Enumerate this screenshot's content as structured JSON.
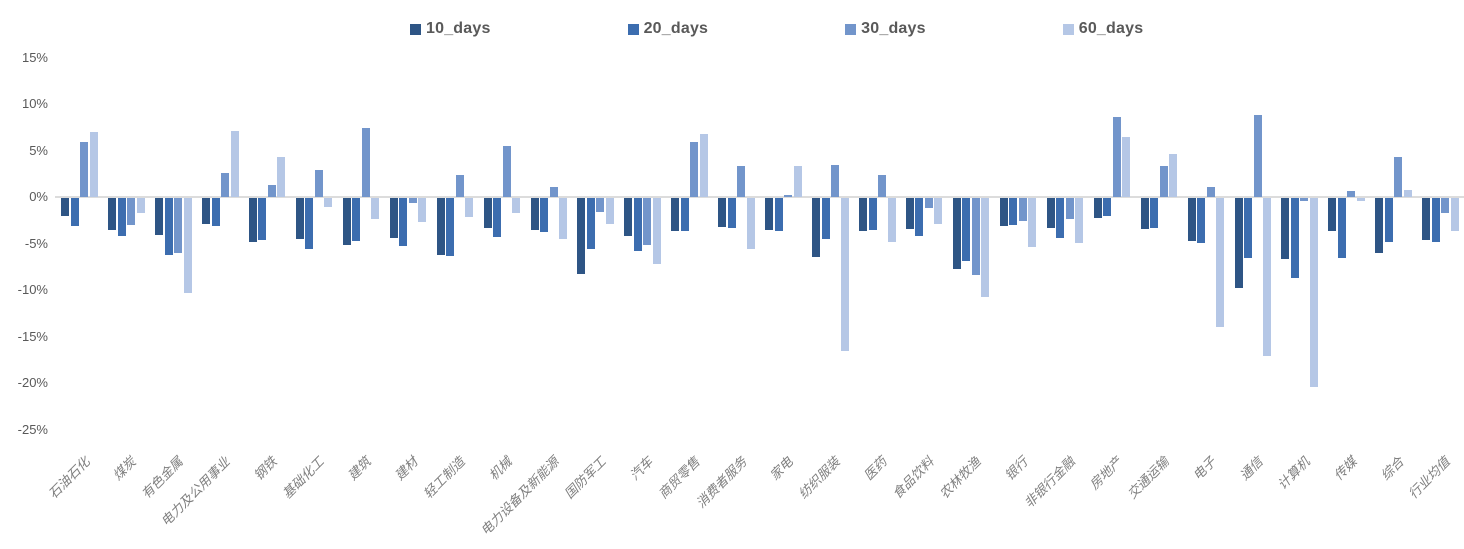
{
  "legend": {
    "items": [
      {
        "label": "10_days",
        "color": "#2E5585"
      },
      {
        "label": "20_days",
        "color": "#3C6DAF"
      },
      {
        "label": "30_days",
        "color": "#7295CB"
      },
      {
        "label": "60_days",
        "color": "#B5C7E6"
      }
    ]
  },
  "y_axis": {
    "tick_labels": [
      "15%",
      "10%",
      "5%",
      "0%",
      "-5%",
      "-10%",
      "-15%",
      "-20%",
      "-25%"
    ],
    "tick_values": [
      15,
      10,
      5,
      0,
      -5,
      -10,
      -15,
      -20,
      -25
    ]
  },
  "chart_data": {
    "type": "bar",
    "title": "",
    "unit": "%",
    "legend_position": "top",
    "grid": false,
    "ylim": [
      -25,
      15
    ],
    "y_ticks": [
      15,
      10,
      5,
      0,
      -5,
      -10,
      -15,
      -20,
      -25
    ],
    "categories": [
      "石油石化",
      "煤炭",
      "有色金属",
      "电力及公用事业",
      "钢铁",
      "基础化工",
      "建筑",
      "建材",
      "轻工制造",
      "机械",
      "电力设备及新能源",
      "国防军工",
      "汽车",
      "商贸零售",
      "消费者服务",
      "家电",
      "纺织服装",
      "医药",
      "食品饮料",
      "农林牧渔",
      "银行",
      "非银行金融",
      "房地产",
      "交通运输",
      "电子",
      "通信",
      "计算机",
      "传媒",
      "综合",
      "行业均值"
    ],
    "series": [
      {
        "name": "10_days",
        "color": "#2E5585",
        "values": [
          -1.9,
          -3.4,
          -4.0,
          -2.8,
          -4.7,
          -4.4,
          -5.1,
          -4.3,
          -6.1,
          -3.2,
          -3.4,
          -8.2,
          -4.1,
          -3.6,
          -3.1,
          -3.4,
          -6.3,
          -3.5,
          -3.3,
          -7.6,
          -3.0,
          -3.2,
          -2.1,
          -3.3,
          -4.6,
          -9.7,
          -6.6,
          -3.6,
          -5.9,
          -4.5
        ]
      },
      {
        "name": "20_days",
        "color": "#3C6DAF",
        "values": [
          -3.0,
          -4.1,
          -6.1,
          -3.0,
          -4.5,
          -5.5,
          -4.6,
          -5.2,
          -6.2,
          -4.2,
          -3.7,
          -5.5,
          -5.7,
          -3.6,
          -3.2,
          -3.5,
          -4.4,
          -3.4,
          -4.1,
          -6.8,
          -2.9,
          -4.3,
          -1.9,
          -3.2,
          -4.8,
          -6.5,
          -8.6,
          -6.4,
          -4.7,
          -4.7
        ]
      },
      {
        "name": "30_days",
        "color": "#7295CB",
        "values": [
          5.9,
          -2.9,
          -5.9,
          2.6,
          1.3,
          2.9,
          7.4,
          -0.5,
          2.4,
          5.5,
          1.1,
          -1.5,
          -5.1,
          5.9,
          3.3,
          0.2,
          3.4,
          2.4,
          -1.1,
          -8.3,
          -2.5,
          -2.3,
          8.6,
          3.3,
          1.1,
          8.8,
          -0.3,
          0.6,
          4.3,
          -1.6
        ]
      },
      {
        "name": "60_days",
        "color": "#B5C7E6",
        "values": [
          7.0,
          -1.6,
          -10.2,
          7.1,
          4.3,
          -1.0,
          -2.3,
          -2.6,
          -2.0,
          -1.6,
          -4.4,
          -2.8,
          -7.1,
          6.8,
          -5.5,
          3.3,
          -16.5,
          -4.7,
          -2.8,
          -10.6,
          -5.3,
          -4.8,
          6.5,
          4.6,
          -13.9,
          -17.0,
          -20.3,
          -0.3,
          0.8,
          -3.5
        ]
      }
    ]
  }
}
